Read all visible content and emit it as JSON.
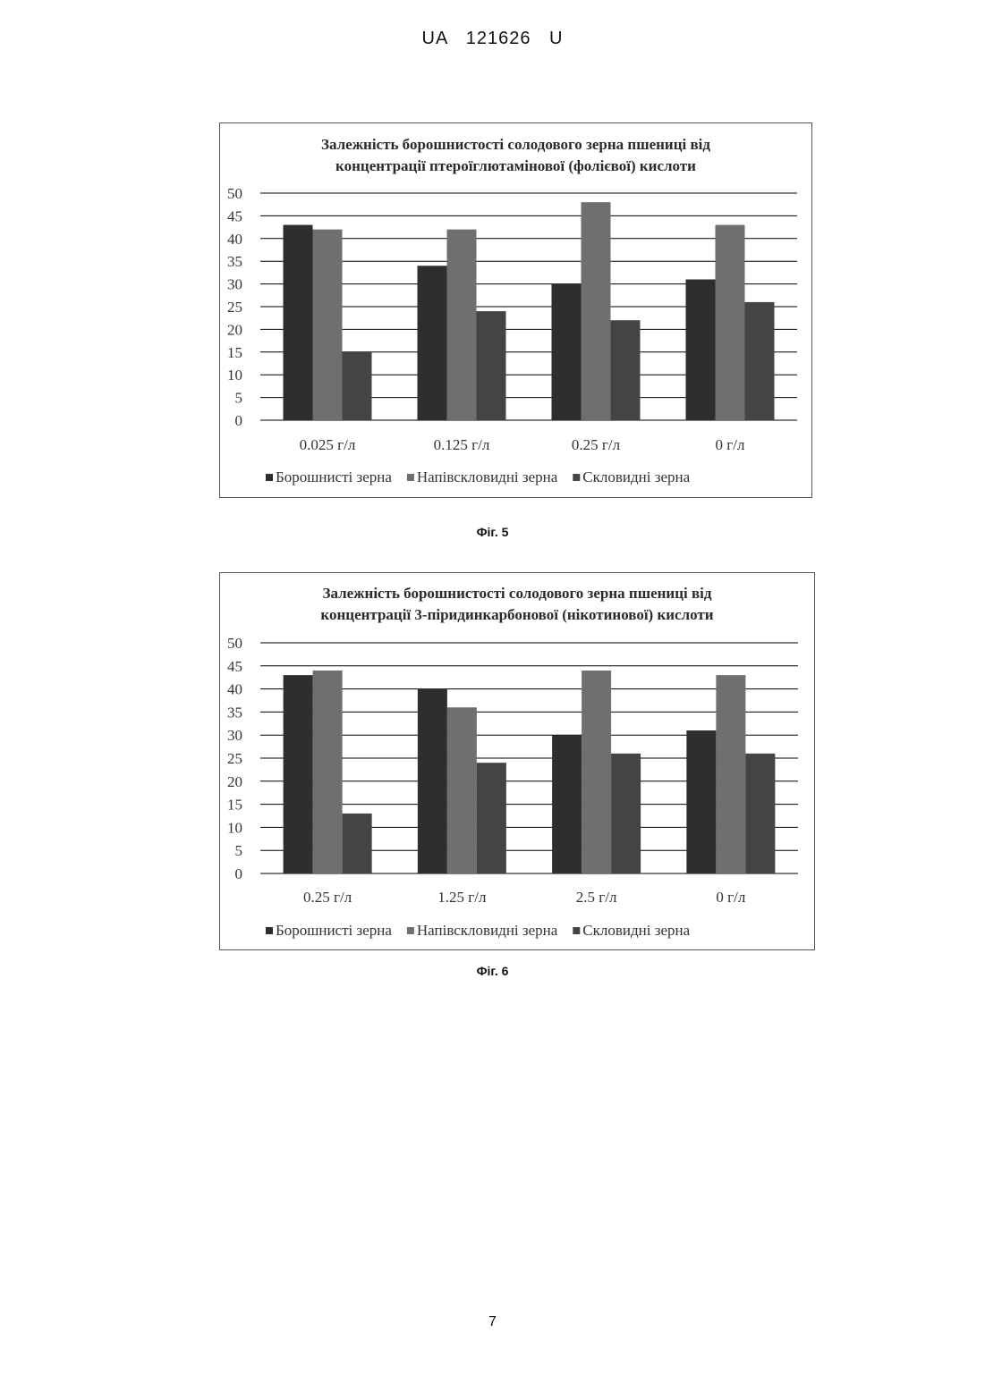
{
  "header": {
    "doc_id": "UA 121626 U"
  },
  "palette": {
    "series_colors": [
      "#2e2e2e",
      "#6f6f6f",
      "#444444"
    ],
    "grid_color": "#000000",
    "frame_color": "#555555"
  },
  "chart_data": [
    {
      "type": "bar",
      "title_lines": [
        "Залежність борошнистості солодового зерна пшениці від",
        "концентрації птероїглютамінової (фолієвої) кислоти"
      ],
      "categories": [
        "0.025 г/л",
        "0.125 г/л",
        "0.25 г/л",
        "0 г/л"
      ],
      "series": [
        {
          "name": "Борошнисті зерна",
          "values": [
            43,
            34,
            30,
            31
          ]
        },
        {
          "name": "Напівскловидні зерна",
          "values": [
            42,
            42,
            48,
            43
          ]
        },
        {
          "name": "Скловидні зерна",
          "values": [
            15,
            24,
            22,
            26
          ]
        }
      ],
      "ylim": [
        0,
        50
      ],
      "yticks": [
        0,
        5,
        10,
        15,
        20,
        25,
        30,
        35,
        40,
        45,
        50
      ],
      "grid": true,
      "legend": "bottom",
      "caption": "Фіг. 5"
    },
    {
      "type": "bar",
      "title_lines": [
        "Залежність борошнистості солодового зерна пшениці від",
        "концентрації 3-піридинкарбонової (нікотинової) кислоти"
      ],
      "categories": [
        "0.25 г/л",
        "1.25 г/л",
        "2.5 г/л",
        "0 г/л"
      ],
      "series": [
        {
          "name": "Борошнисті зерна",
          "values": [
            43,
            40,
            30,
            31
          ]
        },
        {
          "name": "Напівскловидні зерна",
          "values": [
            44,
            36,
            44,
            43
          ]
        },
        {
          "name": "Скловидні зерна",
          "values": [
            13,
            24,
            26,
            26
          ]
        }
      ],
      "ylim": [
        0,
        50
      ],
      "yticks": [
        0,
        5,
        10,
        15,
        20,
        25,
        30,
        35,
        40,
        45,
        50
      ],
      "grid": true,
      "legend": "bottom",
      "caption": "Фіг. 6"
    }
  ],
  "footer": {
    "page_number": "7"
  }
}
